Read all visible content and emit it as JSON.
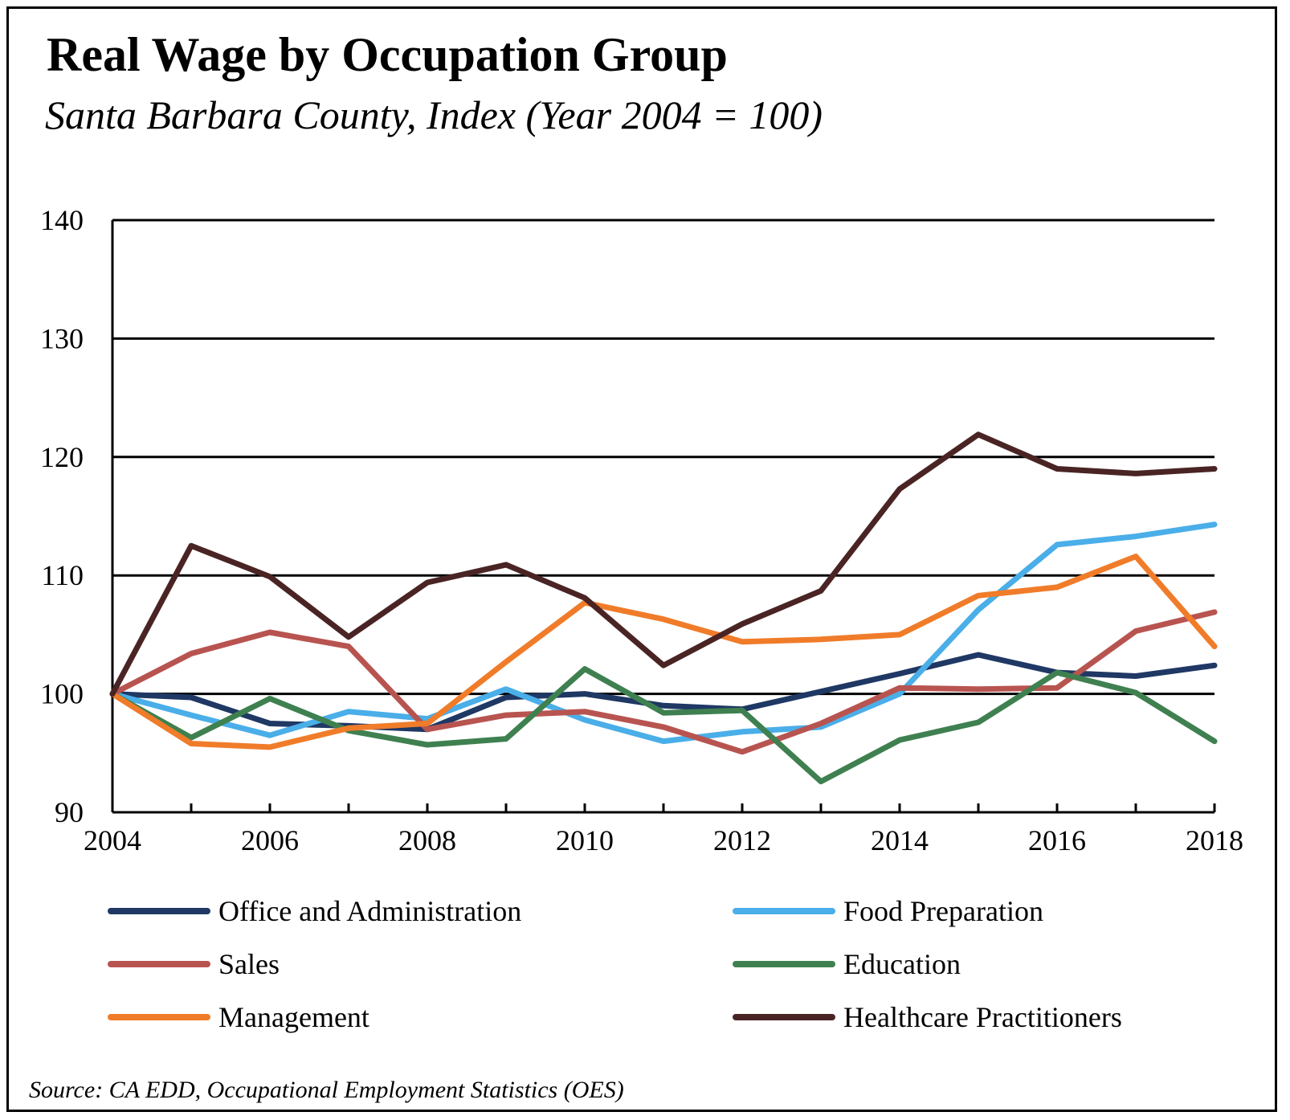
{
  "title": "Real Wage by Occupation Group",
  "subtitle": "Santa Barbara County, Index (Year 2004 = 100)",
  "source": "Source:  CA EDD, Occupational Employment Statistics (OES)",
  "chart_data": {
    "type": "line",
    "title": "Real Wage by Occupation Group",
    "subtitle": "Santa Barbara County, Index (Year 2004 = 100)",
    "xlabel": "",
    "ylabel": "",
    "x": [
      2004,
      2005,
      2006,
      2007,
      2008,
      2009,
      2010,
      2011,
      2012,
      2013,
      2014,
      2015,
      2016,
      2017,
      2018
    ],
    "x_ticks": [
      "2004",
      "2006",
      "2008",
      "2010",
      "2012",
      "2014",
      "2016",
      "2018"
    ],
    "ylim": [
      90,
      140
    ],
    "y_ticks": [
      90,
      100,
      110,
      120,
      130,
      140
    ],
    "grid": "horizontal",
    "legend_position": "bottom",
    "series": [
      {
        "name": "Office and Administration",
        "color": "#1f3864",
        "values": [
          100,
          99.7,
          97.5,
          97.3,
          97.0,
          99.7,
          100.0,
          99.0,
          98.7,
          100.2,
          101.7,
          103.3,
          101.8,
          101.5,
          102.4
        ]
      },
      {
        "name": "Food Preparation",
        "color": "#4aaee8",
        "values": [
          100,
          98.2,
          96.5,
          98.5,
          97.9,
          100.4,
          97.8,
          96.0,
          96.8,
          97.2,
          100.0,
          107.1,
          112.6,
          113.3,
          114.3
        ]
      },
      {
        "name": "Sales",
        "color": "#b85450",
        "values": [
          100,
          103.4,
          105.2,
          104.0,
          97.0,
          98.2,
          98.5,
          97.2,
          95.1,
          97.5,
          100.5,
          100.4,
          100.5,
          105.3,
          106.9
        ]
      },
      {
        "name": "Education",
        "color": "#3f8050",
        "values": [
          100,
          96.3,
          99.6,
          96.9,
          95.7,
          96.2,
          102.1,
          98.4,
          98.6,
          92.6,
          96.1,
          97.6,
          101.8,
          100.1,
          96.0
        ]
      },
      {
        "name": "Management",
        "color": "#f07c2a",
        "values": [
          100,
          95.8,
          95.5,
          97.1,
          97.5,
          102.7,
          107.7,
          106.3,
          104.4,
          104.6,
          105.0,
          108.3,
          109.0,
          111.6,
          104.0
        ]
      },
      {
        "name": "Healthcare Practitioners",
        "color": "#4a2424",
        "values": [
          100,
          112.5,
          109.9,
          104.8,
          109.4,
          110.9,
          108.1,
          102.4,
          105.9,
          108.7,
          117.3,
          121.9,
          119.0,
          118.6,
          119.0
        ]
      }
    ]
  }
}
